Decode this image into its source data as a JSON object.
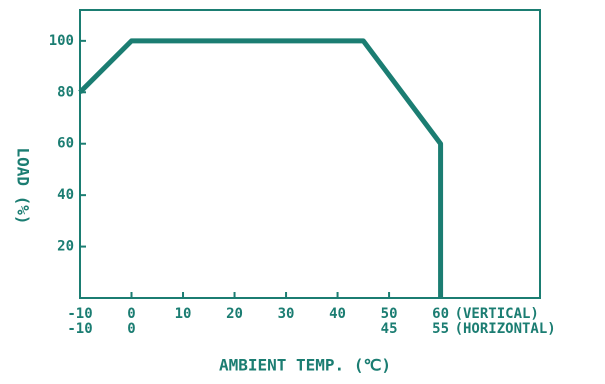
{
  "chart_data": {
    "type": "line",
    "x": [
      -10,
      0,
      45,
      60,
      60
    ],
    "series": [
      {
        "name": null,
        "color": "#1b7d72",
        "values": [
          80,
          100,
          100,
          60,
          0
        ]
      }
    ],
    "xlabel": "AMBIENT TEMP. (℃)",
    "ylabel": "LOAD (%)",
    "xlim": [
      -10,
      79.3
    ],
    "ylim": [
      0,
      112
    ],
    "xticks": [
      -10,
      0,
      10,
      20,
      30,
      40,
      50,
      60
    ],
    "x2ticks": [
      -10,
      0,
      {
        "value": 50,
        "label": "45"
      },
      {
        "value": 60,
        "label": "55"
      }
    ],
    "yticks": [
      20,
      40,
      60,
      80,
      100
    ],
    "row_labels": [
      "(VERTICAL)",
      "(HORIZONTAL)"
    ]
  }
}
